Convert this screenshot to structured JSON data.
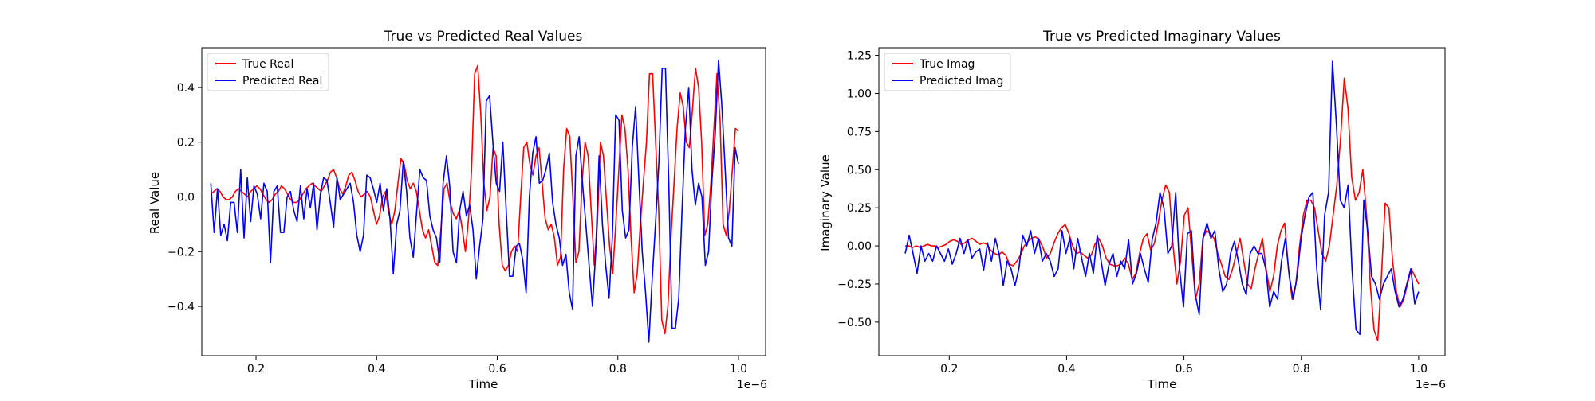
{
  "colors": {
    "true_series": "#ff0000",
    "predicted_series": "#0000ff"
  },
  "chart_data": [
    {
      "type": "line",
      "title": "True vs Predicted Real Values",
      "xlabel": "Time",
      "ylabel": "Real Value",
      "x_offset_label": "1e−6",
      "x_scale_note": "x values are in units of 1e-6",
      "xlim": [
        0.11,
        1.045
      ],
      "ylim": [
        -0.58,
        0.545
      ],
      "xticks": [
        0.2,
        0.4,
        0.6,
        0.8,
        1.0
      ],
      "xtick_labels": [
        "0.2",
        "0.4",
        "0.6",
        "0.8",
        "1.0"
      ],
      "yticks": [
        -0.4,
        -0.2,
        0.0,
        0.2,
        0.4
      ],
      "ytick_labels": [
        "−0.4",
        "−0.2",
        "0.0",
        "0.2",
        "0.4"
      ],
      "legend_position": "top-left",
      "grid": false,
      "x_range": [
        0.125,
        1.0
      ],
      "series": [
        {
          "name": "True Real",
          "color": "#ff0000",
          "values": [
            0.01,
            0.02,
            0.03,
            0.02,
            0.0,
            -0.01,
            -0.01,
            0.0,
            0.02,
            0.03,
            0.02,
            0.01,
            0.0,
            0.02,
            0.03,
            0.04,
            0.03,
            0.01,
            -0.01,
            -0.02,
            -0.01,
            0.01,
            0.02,
            0.04,
            0.03,
            0.01,
            -0.01,
            -0.02,
            -0.02,
            -0.01,
            0.01,
            0.03,
            0.04,
            0.05,
            0.04,
            0.03,
            0.02,
            0.04,
            0.06,
            0.09,
            0.1,
            0.07,
            0.03,
            0.01,
            0.04,
            0.08,
            0.09,
            0.06,
            0.02,
            0.0,
            0.01,
            0.02,
            0.0,
            -0.05,
            -0.1,
            -0.07,
            0.0,
            0.02,
            -0.06,
            -0.1,
            -0.05,
            0.05,
            0.14,
            0.12,
            0.06,
            0.03,
            0.05,
            0.02,
            -0.05,
            -0.12,
            -0.15,
            -0.12,
            -0.18,
            -0.24,
            -0.25,
            -0.12,
            0.03,
            0.05,
            -0.02,
            -0.06,
            -0.08,
            -0.05,
            -0.12,
            -0.2,
            -0.08,
            0.1,
            0.45,
            0.48,
            0.3,
            0.05,
            -0.05,
            0.0,
            0.18,
            0.15,
            -0.1,
            -0.25,
            -0.27,
            -0.25,
            -0.2,
            -0.18,
            -0.2,
            0.0,
            0.18,
            0.2,
            0.12,
            0.08,
            0.15,
            0.18,
            0.05,
            -0.08,
            -0.12,
            -0.1,
            -0.15,
            -0.25,
            -0.22,
            0.1,
            0.25,
            0.22,
            0.0,
            -0.24,
            -0.2,
            0.05,
            0.2,
            0.15,
            -0.05,
            -0.25,
            -0.1,
            0.2,
            0.15,
            -0.02,
            -0.18,
            -0.28,
            -0.1,
            0.1,
            0.3,
            0.25,
            0.1,
            -0.15,
            -0.35,
            -0.28,
            -0.1,
            0.05,
            0.2,
            0.45,
            0.45,
            0.2,
            -0.05,
            -0.45,
            -0.5,
            -0.4,
            -0.15,
            0.05,
            0.25,
            0.38,
            0.33,
            0.2,
            0.18,
            0.32,
            0.47,
            0.4,
            0.2,
            -0.14,
            -0.1,
            0.05,
            0.25,
            0.45,
            0.28,
            -0.1,
            -0.14,
            -0.05,
            0.1,
            0.25,
            0.24
          ]
        },
        {
          "name": "Predicted Real",
          "color": "#0000ff",
          "values": [
            0.05,
            -0.13,
            0.03,
            -0.14,
            -0.1,
            -0.16,
            -0.02,
            -0.02,
            -0.13,
            0.1,
            -0.15,
            0.07,
            -0.09,
            0.04,
            0.01,
            -0.08,
            0.05,
            0.02,
            -0.24,
            0.02,
            0.04,
            -0.13,
            -0.13,
            0.0,
            0.02,
            -0.05,
            -0.09,
            0.04,
            -0.08,
            0.03,
            -0.04,
            0.05,
            -0.12,
            0.01,
            0.07,
            0.06,
            -0.02,
            -0.11,
            0.07,
            -0.01,
            0.01,
            0.03,
            0.05,
            -0.02,
            -0.14,
            -0.2,
            -0.14,
            0.08,
            0.07,
            0.03,
            -0.02,
            0.05,
            -0.05,
            0.03,
            -0.08,
            -0.28,
            -0.1,
            -0.05,
            0.13,
            0.02,
            -0.15,
            -0.22,
            -0.06,
            0.1,
            0.07,
            0.06,
            -0.07,
            -0.12,
            -0.15,
            -0.24,
            0.05,
            0.15,
            0.04,
            -0.2,
            -0.24,
            -0.05,
            0.02,
            -0.07,
            -0.03,
            -0.12,
            -0.3,
            -0.18,
            -0.08,
            0.35,
            0.37,
            0.2,
            0.05,
            0.02,
            0.2,
            -0.05,
            -0.29,
            -0.29,
            -0.18,
            -0.17,
            -0.23,
            -0.35,
            0.0,
            0.16,
            0.22,
            0.05,
            0.06,
            0.1,
            0.16,
            -0.02,
            -0.1,
            -0.15,
            -0.25,
            -0.21,
            -0.35,
            -0.41,
            0.15,
            0.22,
            0.05,
            -0.1,
            -0.25,
            -0.4,
            -0.2,
            0.15,
            -0.1,
            -0.25,
            -0.37,
            -0.15,
            0.3,
            0.28,
            -0.05,
            -0.15,
            -0.12,
            0.18,
            0.33,
            0.06,
            -0.2,
            -0.35,
            -0.53,
            -0.3,
            -0.1,
            0.12,
            0.47,
            0.47,
            0.05,
            -0.48,
            -0.48,
            -0.37,
            -0.05,
            0.25,
            0.4,
            0.1,
            -0.03,
            0.05,
            0.0,
            -0.25,
            -0.2,
            0.06,
            0.23,
            0.5,
            0.33,
            0.1,
            -0.15,
            -0.18,
            0.18,
            0.12
          ]
        }
      ]
    },
    {
      "type": "line",
      "title": "True vs Predicted Imaginary Values",
      "xlabel": "Time",
      "ylabel": "Imaginary Value",
      "x_offset_label": "1e−6",
      "x_scale_note": "x values are in units of 1e-6",
      "xlim": [
        0.08,
        1.045
      ],
      "ylim": [
        -0.72,
        1.3
      ],
      "xticks": [
        0.2,
        0.4,
        0.6,
        0.8,
        1.0
      ],
      "xtick_labels": [
        "0.2",
        "0.4",
        "0.6",
        "0.8",
        "1.0"
      ],
      "yticks": [
        -0.5,
        -0.25,
        0.0,
        0.25,
        0.5,
        0.75,
        1.0,
        1.25
      ],
      "ytick_labels": [
        "−0.50",
        "−0.25",
        "0.00",
        "0.25",
        "0.50",
        "0.75",
        "1.00",
        "1.25"
      ],
      "legend_position": "top-left",
      "grid": false,
      "x_range": [
        0.125,
        1.0
      ],
      "series": [
        {
          "name": "True Imag",
          "color": "#ff0000",
          "values": [
            0.0,
            0.0,
            -0.01,
            0.0,
            -0.01,
            0.0,
            0.01,
            0.0,
            0.0,
            -0.01,
            0.0,
            0.01,
            0.03,
            0.04,
            0.03,
            0.01,
            0.02,
            0.04,
            0.05,
            0.03,
            0.01,
            0.02,
            0.01,
            -0.03,
            -0.05,
            -0.06,
            -0.04,
            -0.06,
            -0.12,
            -0.13,
            -0.1,
            -0.06,
            0.0,
            0.03,
            0.05,
            0.06,
            0.04,
            -0.01,
            -0.08,
            -0.05,
            0.02,
            0.08,
            0.12,
            0.14,
            0.08,
            0.0,
            -0.05,
            -0.04,
            -0.06,
            -0.08,
            -0.06,
            0.01,
            0.05,
            0.0,
            -0.08,
            -0.12,
            -0.13,
            -0.13,
            -0.12,
            -0.08,
            -0.12,
            -0.22,
            -0.18,
            -0.05,
            0.05,
            0.08,
            -0.03,
            0.02,
            0.15,
            0.3,
            0.4,
            0.35,
            0.0,
            -0.25,
            -0.1,
            0.2,
            0.25,
            -0.05,
            -0.35,
            -0.25,
            0.05,
            0.1,
            0.08,
            0.05,
            -0.05,
            -0.12,
            -0.2,
            -0.22,
            -0.15,
            -0.05,
            0.05,
            -0.1,
            -0.25,
            -0.28,
            -0.15,
            -0.05,
            0.05,
            -0.15,
            -0.3,
            -0.2,
            0.0,
            0.1,
            0.15,
            -0.15,
            -0.35,
            -0.25,
            0.0,
            0.2,
            0.3,
            0.3,
            0.25,
            0.1,
            -0.05,
            -0.1,
            0.0,
            0.2,
            0.4,
            0.7,
            1.1,
            0.9,
            0.45,
            0.3,
            0.35,
            0.5,
            0.2,
            -0.25,
            -0.55,
            -0.62,
            -0.2,
            0.28,
            0.25,
            -0.1,
            -0.3,
            -0.4,
            -0.35,
            -0.25,
            -0.15,
            -0.2,
            -0.25
          ]
        },
        {
          "name": "Predicted Imag",
          "color": "#0000ff",
          "values": [
            -0.05,
            0.07,
            -0.05,
            -0.18,
            0.0,
            -0.1,
            -0.05,
            -0.1,
            0.0,
            -0.05,
            -0.1,
            -0.02,
            -0.12,
            -0.05,
            0.05,
            -0.05,
            0.04,
            -0.08,
            -0.04,
            -0.02,
            -0.16,
            0.02,
            -0.1,
            0.05,
            -0.06,
            -0.26,
            -0.1,
            -0.15,
            -0.26,
            -0.15,
            0.07,
            0.0,
            0.1,
            -0.05,
            0.05,
            -0.1,
            -0.05,
            -0.1,
            -0.2,
            -0.15,
            0.1,
            -0.05,
            0.05,
            -0.15,
            0.05,
            -0.08,
            -0.2,
            -0.05,
            -0.18,
            0.07,
            -0.1,
            -0.26,
            -0.12,
            -0.05,
            -0.2,
            -0.1,
            -0.15,
            0.04,
            -0.25,
            -0.18,
            -0.05,
            -0.15,
            -0.24,
            0.04,
            0.15,
            0.35,
            0.25,
            -0.05,
            0.0,
            0.35,
            -0.15,
            -0.4,
            0.08,
            0.1,
            -0.32,
            -0.45,
            0.05,
            0.15,
            0.05,
            0.1,
            -0.15,
            -0.3,
            -0.25,
            -0.05,
            0.03,
            -0.1,
            -0.25,
            -0.32,
            -0.05,
            0.0,
            -0.05,
            -0.05,
            -0.15,
            -0.4,
            -0.3,
            -0.35,
            -0.1,
            0.05,
            -0.2,
            -0.35,
            -0.2,
            0.05,
            0.2,
            0.32,
            0.35,
            -0.15,
            -0.42,
            0.2,
            0.35,
            1.21,
            0.8,
            0.3,
            0.25,
            0.4,
            -0.15,
            -0.55,
            -0.58,
            0.3,
            0.1,
            -0.2,
            -0.25,
            -0.35,
            -0.25,
            -0.2,
            -0.15,
            -0.3,
            -0.4,
            -0.35,
            -0.25,
            -0.15,
            -0.38,
            -0.3
          ]
        }
      ]
    }
  ]
}
